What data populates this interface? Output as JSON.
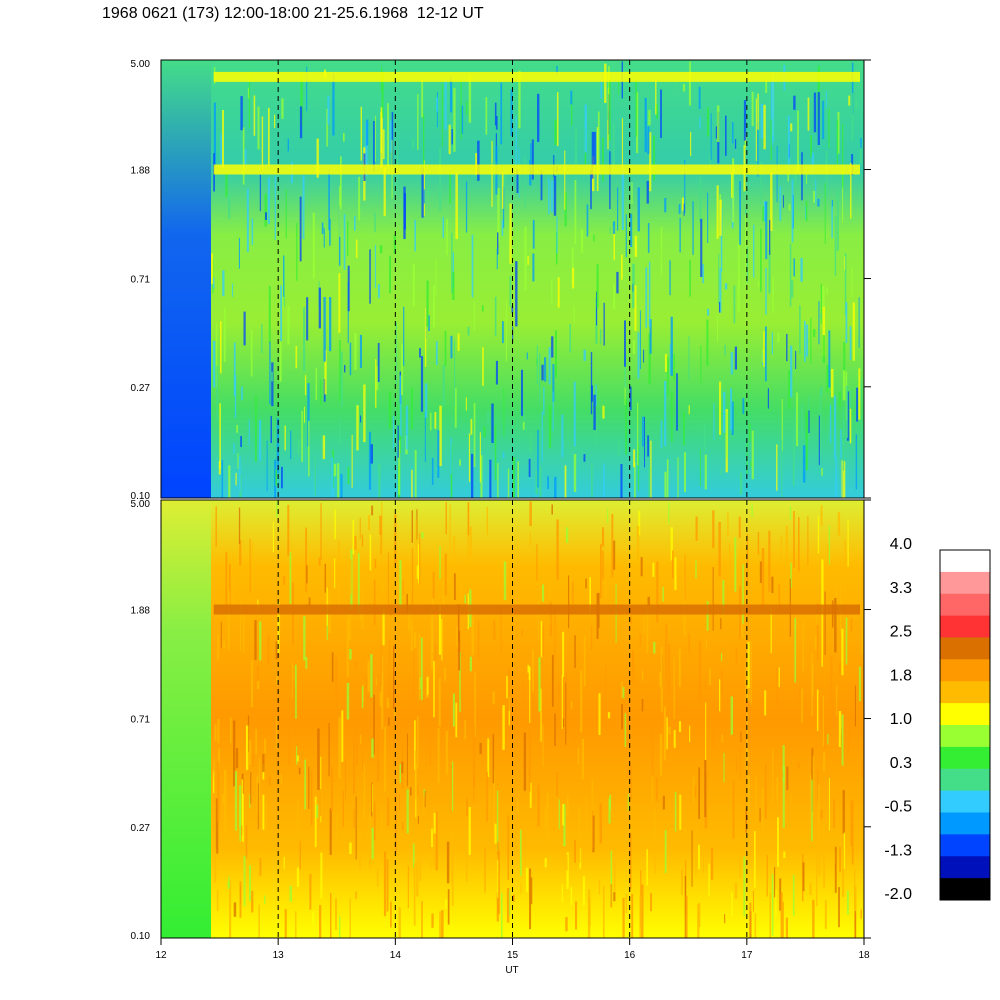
{
  "title": "1968 0621 (173) 12:00-18:00 21-25.6.1968  12-12 UT",
  "chart_data": [
    {
      "type": "heatmap",
      "panel": "top",
      "x_range": [
        12,
        18
      ],
      "y_scale": "log",
      "y_range": [
        0.1,
        5.0
      ],
      "y_ticks": [
        "0.10",
        "0.27",
        "0.71",
        "1.88",
        "5.00"
      ],
      "x_ticks": [
        "12",
        "13",
        "14",
        "15",
        "16",
        "17",
        "18"
      ],
      "dashed_vlines": [
        13,
        14,
        15,
        16,
        17
      ],
      "dominant_level_range": [
        -1.3,
        1.0
      ],
      "features": [
        {
          "band_at_y": 4.3,
          "level": 1.0
        },
        {
          "band_at_y": 1.88,
          "level": 1.0
        }
      ]
    },
    {
      "type": "heatmap",
      "panel": "bottom",
      "x_range": [
        12,
        18
      ],
      "y_scale": "log",
      "y_range": [
        0.1,
        5.0
      ],
      "y_ticks": [
        "0.10",
        "0.27",
        "0.71",
        "1.88",
        "5.00"
      ],
      "x_ticks": [
        "12",
        "13",
        "14",
        "15",
        "16",
        "17",
        "18"
      ],
      "xlabel": "UT",
      "dashed_vlines": [
        13,
        14,
        15,
        16,
        17
      ],
      "dominant_level_range": [
        0.3,
        2.5
      ],
      "features": [
        {
          "band_at_y": 1.88,
          "level": 2.5
        }
      ]
    }
  ],
  "colorbar": {
    "labels": [
      "4.0",
      "3.3",
      "2.5",
      "1.8",
      "1.0",
      "0.3",
      "-0.5",
      "-1.3",
      "-2.0"
    ],
    "colors": [
      "#ffffff",
      "#ff9999",
      "#ff6666",
      "#ff3333",
      "#d97000",
      "#ff9900",
      "#ffbb00",
      "#ffff00",
      "#99ff33",
      "#33ee33",
      "#44dd88",
      "#33ccff",
      "#0099ff",
      "#0044ff",
      "#0011bb",
      "#000000"
    ]
  }
}
